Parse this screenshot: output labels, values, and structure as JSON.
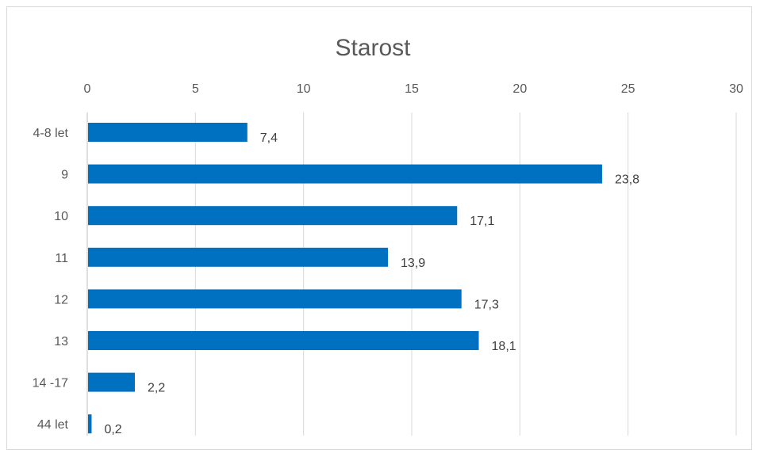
{
  "chart_data": {
    "type": "bar",
    "orientation": "horizontal",
    "title": "Starost",
    "xlabel": "",
    "ylabel": "",
    "categories": [
      "4-8 let",
      "9",
      "10",
      "11",
      "12",
      "13",
      "14 -17",
      "44 let"
    ],
    "values": [
      7.4,
      23.8,
      17.1,
      13.9,
      17.3,
      18.1,
      2.2,
      0.2
    ],
    "value_labels": [
      "7,4",
      "23,8",
      "17,1",
      "13,9",
      "17,3",
      "18,1",
      "2,2",
      "0,2"
    ],
    "xlim": [
      0,
      30
    ],
    "x_ticks": [
      0,
      5,
      10,
      15,
      20,
      25,
      30
    ],
    "x_tick_labels": [
      "0",
      "5",
      "10",
      "15",
      "20",
      "25",
      "30"
    ],
    "x_axis_position": "top",
    "grid": true,
    "legend": false,
    "bar_color": "#0070C0"
  }
}
